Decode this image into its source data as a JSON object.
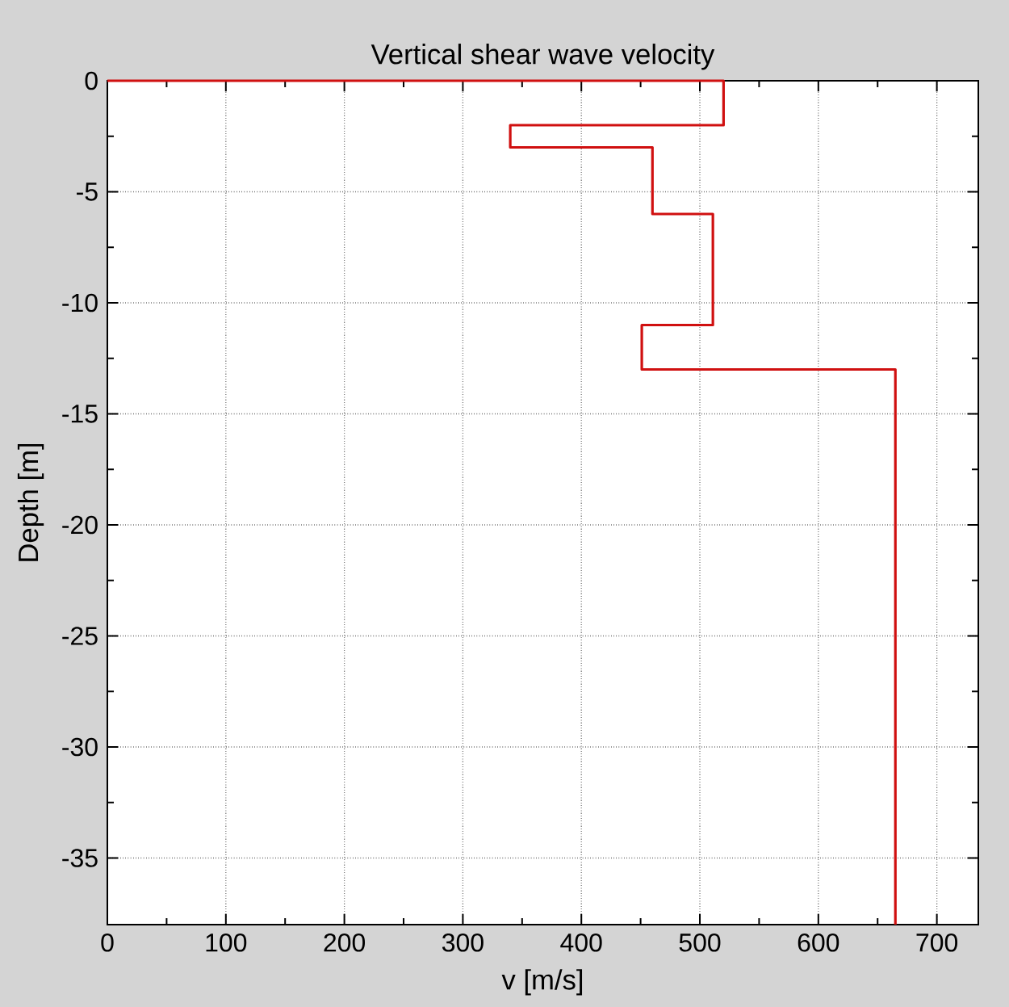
{
  "chart_data": {
    "type": "line",
    "title": "Vertical shear wave  velocity",
    "xlabel": "v [m/s]",
    "ylabel": "Depth [m]",
    "x": [
      0,
      520,
      520,
      340,
      340,
      460,
      460,
      511,
      511,
      451,
      451,
      665,
      665
    ],
    "values": [
      0,
      0,
      -2,
      -2,
      -3,
      -3,
      -6,
      -6,
      -11,
      -11,
      -13,
      -13,
      -38
    ],
    "color": "#d01010",
    "line_style": "solid",
    "xlim": [
      0,
      735
    ],
    "ylim": [
      -38,
      0
    ],
    "xticks": [
      0,
      100,
      200,
      300,
      400,
      500,
      600,
      700
    ],
    "yticks": [
      -35,
      -30,
      -25,
      -20,
      -15,
      -10,
      -5,
      0
    ],
    "grid": true
  }
}
